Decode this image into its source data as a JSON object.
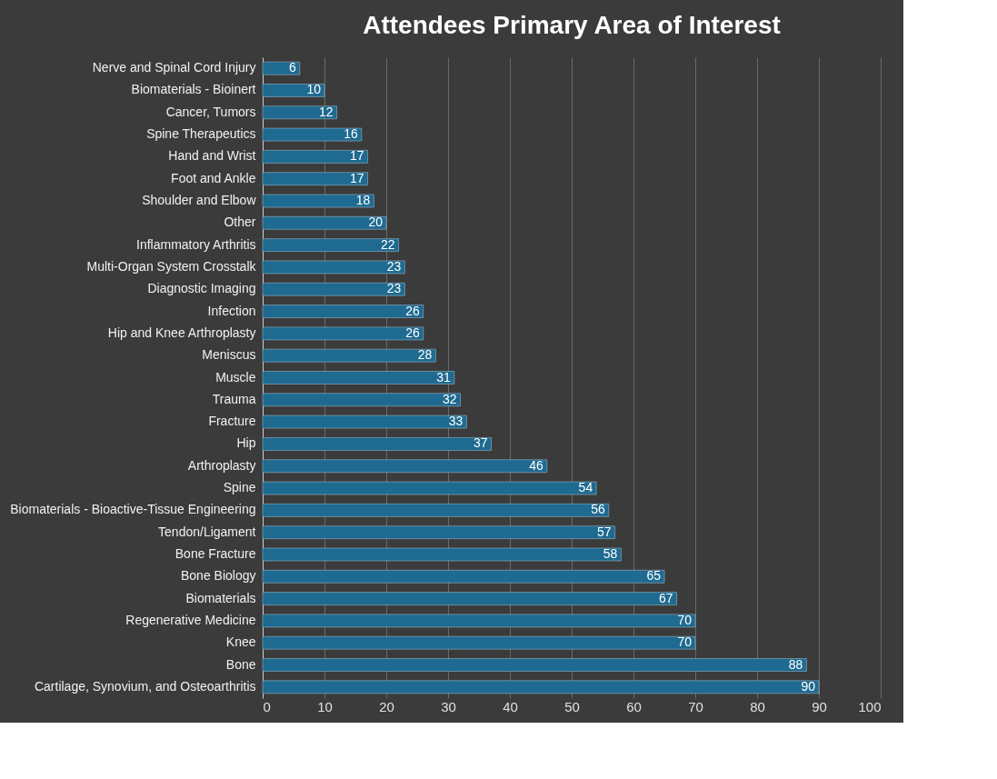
{
  "chart_data": {
    "type": "bar",
    "orientation": "horizontal",
    "title": "Attendees Primary Area of Interest",
    "categories": [
      "Nerve and Spinal Cord Injury",
      "Biomaterials - Bioinert",
      "Cancer, Tumors",
      "Spine Therapeutics",
      "Hand and Wrist",
      "Foot and Ankle",
      "Shoulder and Elbow",
      "Other",
      "Inflammatory Arthritis",
      "Multi-Organ System Crosstalk",
      "Diagnostic Imaging",
      "Infection",
      "Hip and Knee Arthroplasty",
      "Meniscus",
      "Muscle",
      "Trauma",
      "Fracture",
      "Hip",
      "Arthroplasty",
      "Spine",
      "Biomaterials - Bioactive-Tissue Engineering",
      "Tendon/Ligament",
      "Bone Fracture",
      "Bone Biology",
      "Biomaterials",
      "Regenerative Medicine",
      "Knee",
      "Bone",
      "Cartilage, Synovium, and Osteoarthritis"
    ],
    "values": [
      6,
      10,
      12,
      16,
      17,
      17,
      18,
      20,
      22,
      23,
      23,
      26,
      26,
      28,
      31,
      32,
      33,
      37,
      46,
      54,
      56,
      57,
      58,
      65,
      67,
      70,
      70,
      88,
      90
    ],
    "color": "#1f6a90",
    "xlim": [
      0,
      100
    ],
    "xticks": [
      0,
      10,
      20,
      30,
      40,
      50,
      60,
      70,
      80,
      90,
      100
    ],
    "grid": "x",
    "data_labels": true
  }
}
